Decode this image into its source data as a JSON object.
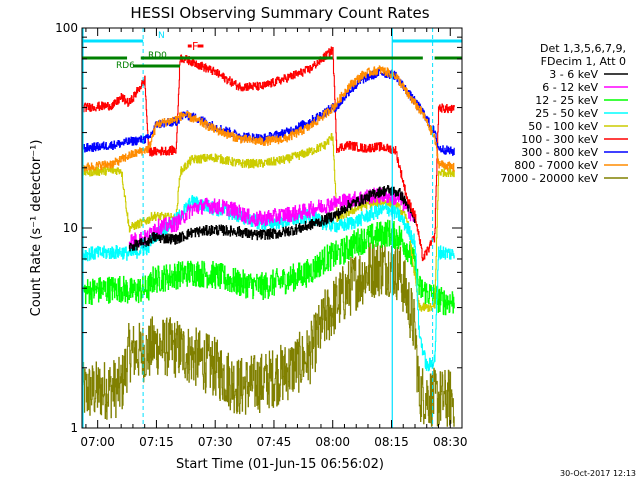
{
  "chart_data": {
    "type": "line",
    "title": "HESSI Observing Summary Count Rates",
    "xlabel": "Start Time (01-Jun-15 06:56:02)",
    "ylabel": "Count Rate (s⁻¹ detector⁻¹)",
    "yscale": "log",
    "ylim": [
      1,
      100
    ],
    "y_tick_labels": [
      "1",
      "10",
      "100"
    ],
    "xlim_minutes": [
      -4.0,
      93.0
    ],
    "x_ticks": [
      {
        "t": 0,
        "label": "07:00"
      },
      {
        "t": 15,
        "label": "07:15"
      },
      {
        "t": 30,
        "label": "07:30"
      },
      {
        "t": 45,
        "label": "07:45"
      },
      {
        "t": 60,
        "label": "08:00"
      },
      {
        "t": 75,
        "label": "08:15"
      },
      {
        "t": 90,
        "label": "08:30"
      }
    ],
    "legend_header": [
      "Det 1,3,5,6,7,9,",
      "FDecim 1, Att 0"
    ],
    "legend_position": "right",
    "series": [
      {
        "name": "3 - 6 keV",
        "color": "#000000",
        "points": [
          [
            8,
            8
          ],
          [
            13,
            8.6
          ],
          [
            14,
            9
          ],
          [
            20,
            8.8
          ],
          [
            24,
            9.5
          ],
          [
            30,
            9.8
          ],
          [
            36,
            9.6
          ],
          [
            40,
            9.2
          ],
          [
            46,
            9.4
          ],
          [
            52,
            10
          ],
          [
            58,
            11
          ],
          [
            62,
            12
          ],
          [
            64,
            13
          ],
          [
            68,
            14
          ],
          [
            71,
            15
          ],
          [
            74,
            15.5
          ],
          [
            77,
            15
          ],
          [
            79,
            13
          ],
          [
            81,
            11
          ]
        ]
      },
      {
        "name": "6 - 12 keV",
        "color": "#ff00ff",
        "points": [
          [
            8,
            8.6
          ],
          [
            13,
            9
          ],
          [
            14,
            10
          ],
          [
            20,
            10.5
          ],
          [
            24,
            12.5
          ],
          [
            28,
            13
          ],
          [
            34,
            12.5
          ],
          [
            40,
            11
          ],
          [
            46,
            11.5
          ],
          [
            52,
            12
          ],
          [
            58,
            13
          ],
          [
            62,
            13.5
          ],
          [
            66,
            14
          ],
          [
            70,
            14.5
          ],
          [
            74,
            14.5
          ],
          [
            77,
            14
          ],
          [
            79,
            12.5
          ],
          [
            81,
            11
          ]
        ]
      },
      {
        "name": "12 - 25 keV",
        "color": "#00ff00",
        "points": [
          [
            -4,
            4.8
          ],
          [
            6,
            5
          ],
          [
            8,
            4.8
          ],
          [
            13,
            5
          ],
          [
            14,
            5.5
          ],
          [
            20,
            5.8
          ],
          [
            24,
            6
          ],
          [
            30,
            5.8
          ],
          [
            36,
            5.3
          ],
          [
            42,
            5.1
          ],
          [
            48,
            5.5
          ],
          [
            54,
            6
          ],
          [
            58,
            7
          ],
          [
            62,
            7.5
          ],
          [
            66,
            8.5
          ],
          [
            70,
            9
          ],
          [
            74,
            9.5
          ],
          [
            77,
            9
          ],
          [
            79,
            8
          ],
          [
            81,
            6.5
          ],
          [
            82,
            5
          ],
          [
            88,
            4.3
          ],
          [
            91,
            4.3
          ]
        ]
      },
      {
        "name": "25 - 50 keV",
        "color": "#00ffff",
        "points": [
          [
            -4,
            7.4
          ],
          [
            6,
            7.6
          ],
          [
            8,
            7.4
          ],
          [
            13,
            8
          ],
          [
            14,
            9
          ],
          [
            20,
            11
          ],
          [
            24,
            13.5
          ],
          [
            30,
            12.5
          ],
          [
            36,
            11.5
          ],
          [
            42,
            10.5
          ],
          [
            48,
            10.8
          ],
          [
            54,
            11.5
          ],
          [
            58,
            10.5
          ],
          [
            62,
            10.2
          ],
          [
            66,
            10.8
          ],
          [
            70,
            11.8
          ],
          [
            74,
            12.5
          ],
          [
            77,
            11.5
          ],
          [
            79,
            10
          ],
          [
            81,
            8.5
          ],
          [
            82,
            3
          ],
          [
            84,
            2
          ],
          [
            86,
            2.2
          ],
          [
            87,
            7.6
          ],
          [
            91,
            7.4
          ]
        ]
      },
      {
        "name": "50 - 100 keV",
        "color": "#cccc00",
        "points": [
          [
            -4,
            19
          ],
          [
            6,
            19.5
          ],
          [
            8,
            10
          ],
          [
            13,
            11
          ],
          [
            14,
            11.5
          ],
          [
            20,
            11.2
          ],
          [
            21,
            19
          ],
          [
            24,
            22
          ],
          [
            30,
            22.5
          ],
          [
            36,
            21
          ],
          [
            42,
            21
          ],
          [
            48,
            22
          ],
          [
            54,
            24
          ],
          [
            58,
            26
          ],
          [
            60,
            29
          ],
          [
            61,
            11
          ],
          [
            64,
            12
          ],
          [
            68,
            13
          ],
          [
            72,
            13.5
          ],
          [
            76,
            13.3
          ],
          [
            79,
            11
          ],
          [
            82,
            4
          ],
          [
            86,
            4
          ],
          [
            87,
            19
          ],
          [
            91,
            19
          ]
        ]
      },
      {
        "name": "100 - 300 keV",
        "color": "#ff0000",
        "points": [
          [
            -4,
            40
          ],
          [
            4,
            41
          ],
          [
            6,
            45
          ],
          [
            8,
            42
          ],
          [
            12,
            55
          ],
          [
            13,
            24
          ],
          [
            20,
            24.5
          ],
          [
            21,
            71
          ],
          [
            24,
            68
          ],
          [
            30,
            60
          ],
          [
            36,
            51
          ],
          [
            42,
            51
          ],
          [
            48,
            56
          ],
          [
            54,
            62
          ],
          [
            58,
            72
          ],
          [
            60,
            78
          ],
          [
            61,
            25
          ],
          [
            64,
            26
          ],
          [
            68,
            25
          ],
          [
            72,
            25.5
          ],
          [
            76,
            24.5
          ],
          [
            79,
            14
          ],
          [
            81,
            11.5
          ],
          [
            83,
            7
          ],
          [
            86,
            9
          ],
          [
            87,
            40
          ],
          [
            91,
            39
          ]
        ]
      },
      {
        "name": "300 - 800 keV",
        "color": "#0000ff",
        "points": [
          [
            -4,
            25
          ],
          [
            4,
            26
          ],
          [
            8,
            27
          ],
          [
            13,
            28
          ],
          [
            15,
            33
          ],
          [
            20,
            34
          ],
          [
            22,
            37
          ],
          [
            26,
            35
          ],
          [
            30,
            32
          ],
          [
            36,
            29
          ],
          [
            42,
            28
          ],
          [
            48,
            30
          ],
          [
            54,
            34
          ],
          [
            58,
            38
          ],
          [
            60,
            40
          ],
          [
            61,
            40
          ],
          [
            64,
            48
          ],
          [
            68,
            56
          ],
          [
            72,
            60
          ],
          [
            76,
            58
          ],
          [
            79,
            48
          ],
          [
            83,
            38
          ],
          [
            86,
            30
          ],
          [
            87,
            25
          ],
          [
            91,
            24
          ]
        ]
      },
      {
        "name": "800 - 7000 keV",
        "color": "#ff8c00",
        "points": [
          [
            -4,
            20
          ],
          [
            4,
            21
          ],
          [
            8,
            23
          ],
          [
            13,
            25
          ],
          [
            15,
            33
          ],
          [
            20,
            35
          ],
          [
            22,
            37
          ],
          [
            26,
            34
          ],
          [
            30,
            31
          ],
          [
            36,
            28
          ],
          [
            42,
            27
          ],
          [
            48,
            28
          ],
          [
            54,
            32
          ],
          [
            58,
            37
          ],
          [
            60,
            40
          ],
          [
            61,
            42
          ],
          [
            64,
            51
          ],
          [
            68,
            59
          ],
          [
            72,
            62
          ],
          [
            76,
            58
          ],
          [
            79,
            47
          ],
          [
            83,
            37
          ],
          [
            86,
            28
          ],
          [
            87,
            21
          ],
          [
            91,
            20
          ]
        ]
      },
      {
        "name": "7000 - 20000 keV",
        "color": "#808000",
        "points": [
          [
            -4,
            1.5
          ],
          [
            6,
            1.6
          ],
          [
            8,
            2.4
          ],
          [
            13,
            2.4
          ],
          [
            14,
            2.6
          ],
          [
            20,
            2.5
          ],
          [
            24,
            2.3
          ],
          [
            30,
            2
          ],
          [
            36,
            1.6
          ],
          [
            42,
            1.7
          ],
          [
            48,
            1.9
          ],
          [
            54,
            2.3
          ],
          [
            58,
            3.5
          ],
          [
            62,
            4.5
          ],
          [
            66,
            5.5
          ],
          [
            70,
            6.3
          ],
          [
            74,
            6.5
          ],
          [
            77,
            6
          ],
          [
            79,
            4.5
          ],
          [
            81,
            3
          ],
          [
            82,
            1.5
          ],
          [
            86,
            1.4
          ],
          [
            91,
            1.4
          ]
        ]
      }
    ],
    "state_bars": [
      {
        "label": "N",
        "color": "#00e0ff",
        "segments": [
          [
            -4,
            11.6
          ],
          [
            75.2,
            93
          ]
        ]
      },
      {
        "label": "RD0",
        "color": "#008000",
        "segments": [
          [
            -4,
            7.5
          ],
          [
            11,
            60
          ],
          [
            61,
            83
          ],
          [
            86,
            93
          ]
        ]
      },
      {
        "label": "RD6",
        "color": "#008000",
        "segments": [
          [
            9,
            21
          ]
        ]
      },
      {
        "label": "F",
        "color": "#ff0000",
        "segments": [
          [
            23,
            24
          ],
          [
            25.5,
            27
          ]
        ]
      }
    ],
    "markers": {
      "cyan_dashed": [
        11.6,
        85.5
      ],
      "cyan_solid": [
        -4,
        75.2
      ]
    },
    "transitions_minutes": [
      7.5,
      11.6,
      21,
      60.5,
      79.5,
      86.5
    ]
  },
  "footer": {
    "date": "30-Oct-2017 12:13"
  }
}
